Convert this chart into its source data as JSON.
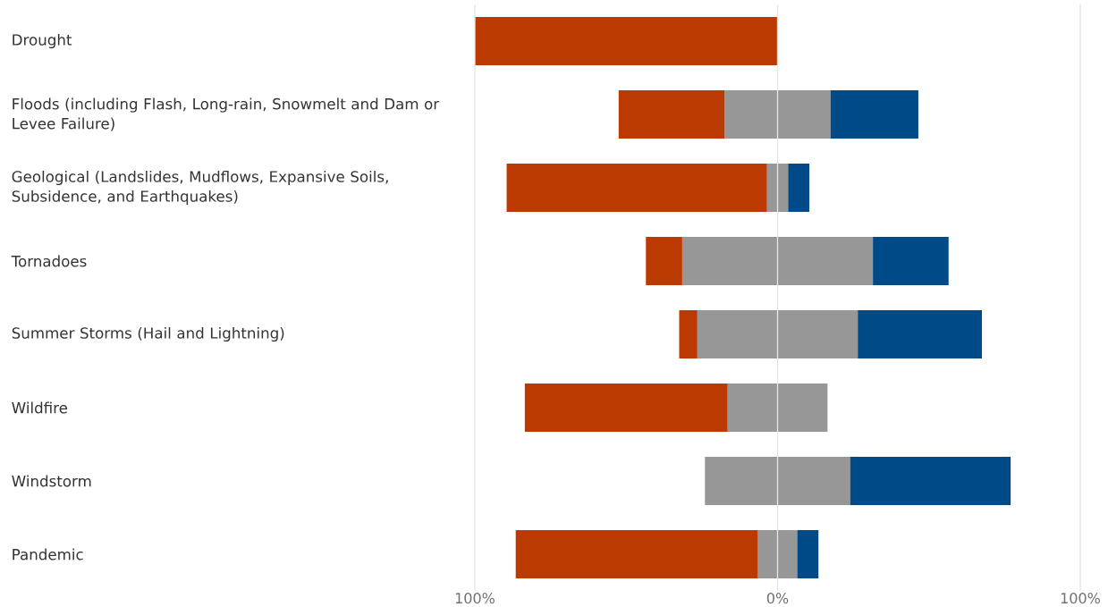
{
  "chart_data": {
    "type": "bar",
    "orientation": "horizontal",
    "stacked": true,
    "categories": [
      "Drought",
      "Floods (including Flash, Long-rain, Snowmelt and Dam or Levee Failure)",
      "Geological (Landslides, Mudflows, Expansive Soils, Subsidence, and Earthquakes)",
      "Tornadoes",
      "Summer Storms (Hail and Lightning)",
      "Wildfire",
      "Windstorm",
      "Pandemic"
    ],
    "series": [
      {
        "color": "#979797",
        "values": [
          0,
          -17.5,
          -3.5,
          -31.5,
          -26.5,
          -16.5,
          -24,
          -6.5
        ]
      },
      {
        "color": "#bb3a02",
        "values": [
          -100,
          -35,
          -86,
          -12,
          -6,
          -67,
          0,
          -80
        ]
      },
      {
        "color": "#979797",
        "values": [
          0,
          17.5,
          3.5,
          31.5,
          26.5,
          16.5,
          24,
          6.5
        ]
      },
      {
        "color": "#004a87",
        "values": [
          0,
          29,
          7,
          25,
          41,
          0,
          53,
          7
        ]
      }
    ],
    "xlim": [
      -100,
      100
    ],
    "xticks": [
      {
        "value": -100,
        "label": "100%"
      },
      {
        "value": 0,
        "label": "0%"
      },
      {
        "value": 100,
        "label": "100%"
      }
    ],
    "grid": "x"
  }
}
